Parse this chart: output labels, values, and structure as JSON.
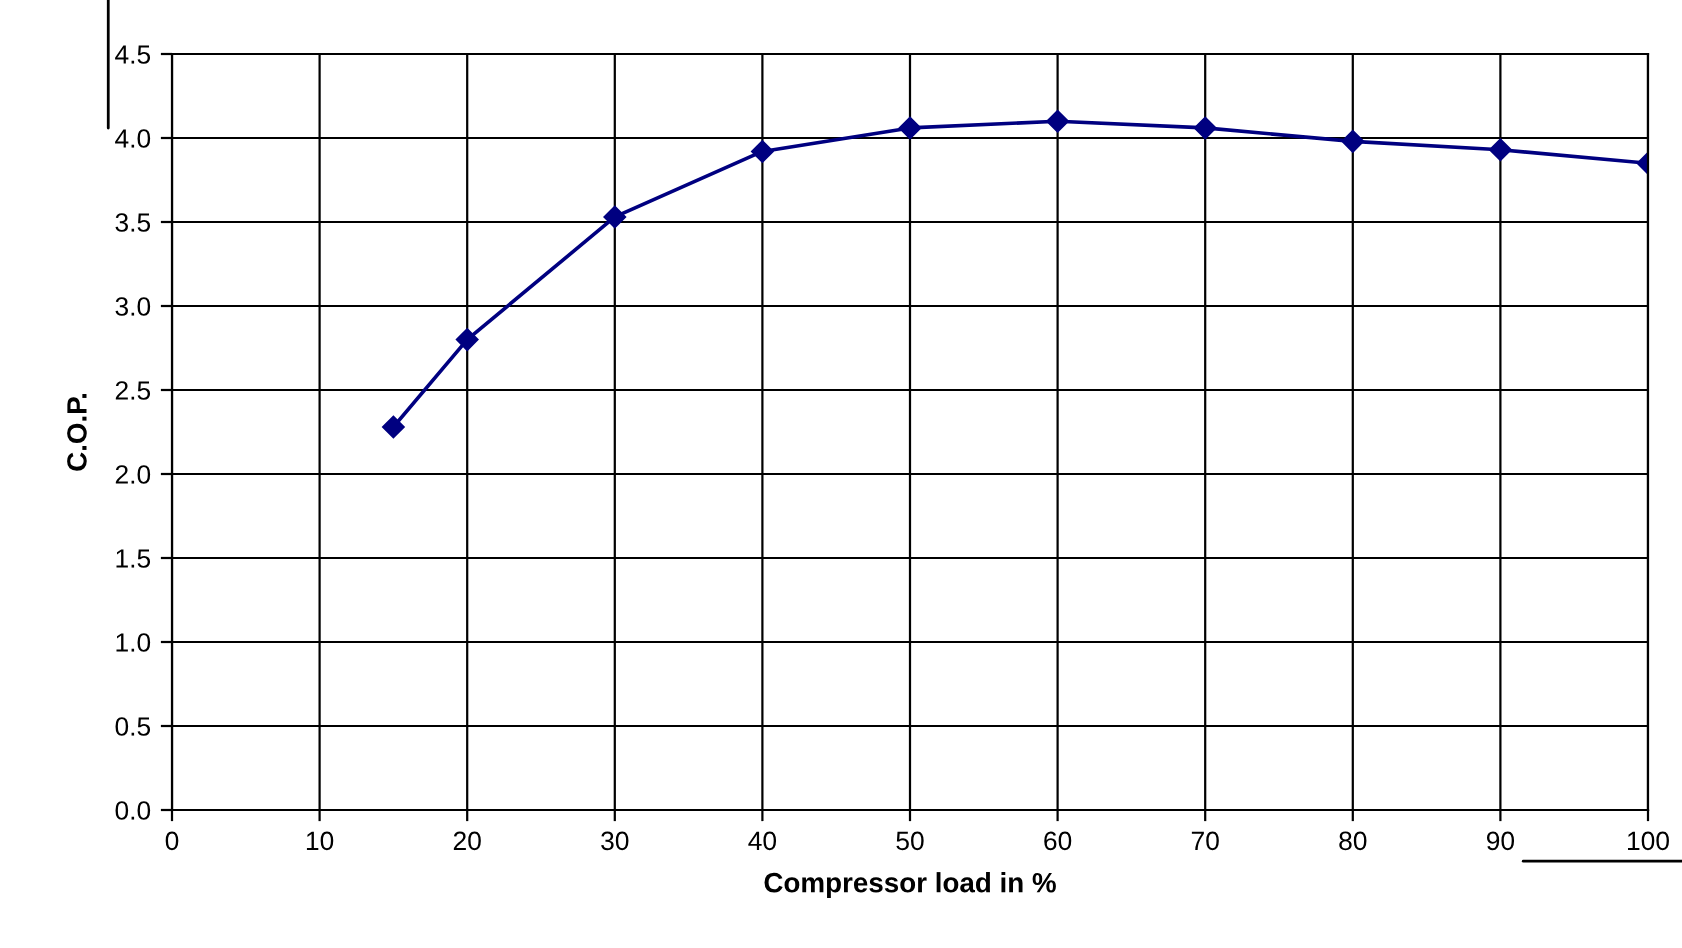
{
  "chart_data": {
    "type": "line",
    "xlabel": "Compressor load in %",
    "ylabel": "C.O.P.",
    "x": [
      15,
      20,
      30,
      40,
      50,
      60,
      70,
      80,
      90,
      100
    ],
    "series": [
      {
        "color": "#000080",
        "values": [
          2.28,
          2.8,
          3.53,
          3.92,
          4.06,
          4.1,
          4.06,
          3.98,
          3.93,
          3.85
        ]
      }
    ],
    "xlim": [
      0,
      100
    ],
    "xticks": [
      0,
      10,
      20,
      30,
      40,
      50,
      60,
      70,
      80,
      90,
      100
    ],
    "ylim": [
      0,
      4.5
    ],
    "yticks": [
      {
        "value": 0,
        "label": "0.0"
      },
      {
        "value": 0.5,
        "label": "0.5"
      },
      {
        "value": 1,
        "label": "1.0"
      },
      {
        "value": 1.5,
        "label": "1.5"
      },
      {
        "value": 2,
        "label": "2.0"
      },
      {
        "value": 2.5,
        "label": "2.5"
      },
      {
        "value": 3,
        "label": "3.0"
      },
      {
        "value": 3.5,
        "label": "3.5"
      },
      {
        "value": 4,
        "label": "4.0"
      },
      {
        "value": 4.5,
        "label": "4.5"
      }
    ],
    "grid": true,
    "marker": "diamond",
    "line_style": "solid",
    "legend": false
  }
}
